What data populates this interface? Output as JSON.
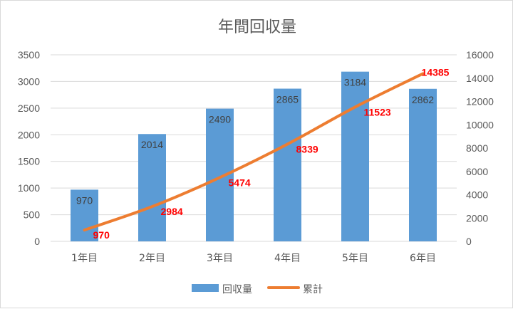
{
  "chart_data": {
    "type": "bar",
    "title": "年間回収量",
    "categories": [
      "1年目",
      "2年目",
      "3年目",
      "4年目",
      "5年目",
      "6年目"
    ],
    "series": [
      {
        "name": "回収量",
        "type": "bar",
        "axis": "left",
        "color": "#5b9bd5",
        "values": [
          970,
          2014,
          2490,
          2865,
          3184,
          2862
        ]
      },
      {
        "name": "累計",
        "type": "line",
        "axis": "right",
        "color": "#ed7d31",
        "values": [
          970,
          2984,
          5474,
          8339,
          11523,
          14385
        ]
      }
    ],
    "y_left": {
      "min": 0,
      "max": 3500,
      "ticks": [
        "0",
        "500",
        "1000",
        "1500",
        "2000",
        "2500",
        "3000",
        "3500"
      ]
    },
    "y_right": {
      "min": 0,
      "max": 16000,
      "ticks": [
        "0",
        "2000",
        "4000",
        "6000",
        "8000",
        "10000",
        "12000",
        "14000",
        "16000"
      ]
    },
    "xlabel": "",
    "ylabel": "",
    "grid": true,
    "legend_position": "bottom",
    "bar_label_color": "#404040",
    "line_label_color": "#ff0000"
  }
}
